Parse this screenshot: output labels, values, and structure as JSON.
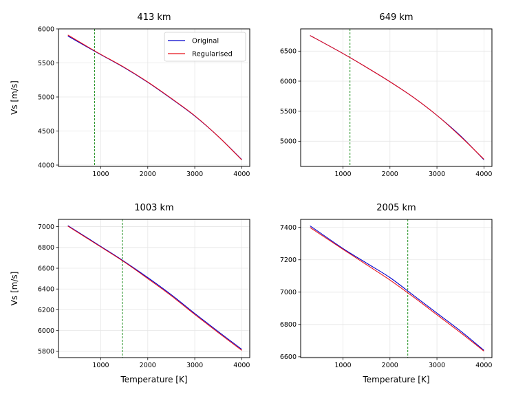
{
  "chart_data": [
    {
      "type": "line",
      "title": "413 km",
      "xlabel": "",
      "ylabel": "Vs [m/s]",
      "xlim": [
        100,
        4170
      ],
      "ylim": [
        3980,
        6000
      ],
      "xticks": [
        1000,
        2000,
        3000,
        4000
      ],
      "yticks": [
        4000,
        4500,
        5000,
        5500,
        6000
      ],
      "xtick_labels": [
        "1000",
        "2000",
        "3000",
        "4000"
      ],
      "ytick_labels": [
        "4000",
        "4500",
        "5000",
        "5500",
        "6000"
      ],
      "vline": 870,
      "grid": true,
      "legend": {
        "position": "top-right",
        "entries": [
          "Original",
          "Regularised"
        ]
      },
      "series": [
        {
          "name": "Original",
          "color": "#0000cc",
          "x": [
            300,
            900,
            1500,
            2000,
            2500,
            3000,
            3500,
            4000
          ],
          "y": [
            5895,
            5660,
            5430,
            5215,
            4975,
            4720,
            4420,
            4080
          ]
        },
        {
          "name": "Regularised",
          "color": "#e8101a",
          "x": [
            300,
            900,
            1500,
            2000,
            2500,
            3000,
            3500,
            4000
          ],
          "y": [
            5910,
            5665,
            5435,
            5220,
            4980,
            4725,
            4420,
            4075
          ]
        }
      ]
    },
    {
      "type": "line",
      "title": "649 km",
      "xlabel": "",
      "ylabel": "",
      "xlim": [
        100,
        4170
      ],
      "ylim": [
        4580,
        6870
      ],
      "xticks": [
        1000,
        2000,
        3000,
        4000
      ],
      "yticks": [
        5000,
        5500,
        6000,
        6500
      ],
      "xtick_labels": [
        "1000",
        "2000",
        "3000",
        "4000"
      ],
      "ytick_labels": [
        "5000",
        "5500",
        "6000",
        "6500"
      ],
      "vline": 1150,
      "grid": true,
      "series": [
        {
          "name": "Original",
          "color": "#0000cc",
          "x": [
            300,
            1000,
            1500,
            2000,
            2500,
            3000,
            3500,
            4000
          ],
          "y": [
            6760,
            6460,
            6230,
            5990,
            5730,
            5430,
            5090,
            4690
          ]
        },
        {
          "name": "Regularised",
          "color": "#e8101a",
          "x": [
            300,
            1000,
            1500,
            2000,
            2500,
            3000,
            3500,
            4000
          ],
          "y": [
            6760,
            6460,
            6230,
            5990,
            5730,
            5430,
            5080,
            4700
          ]
        }
      ]
    },
    {
      "type": "line",
      "title": "1003 km",
      "xlabel": "Temperature [K]",
      "ylabel": "Vs [m/s]",
      "xlim": [
        100,
        4170
      ],
      "ylim": [
        5740,
        7070
      ],
      "xticks": [
        1000,
        2000,
        3000,
        4000
      ],
      "yticks": [
        5800,
        6000,
        6200,
        6400,
        6600,
        6800,
        7000
      ],
      "xtick_labels": [
        "1000",
        "2000",
        "3000",
        "4000"
      ],
      "ytick_labels": [
        "5800",
        "6000",
        "6200",
        "6400",
        "6600",
        "6800",
        "7000"
      ],
      "vline": 1460,
      "grid": true,
      "series": [
        {
          "name": "Original",
          "color": "#0000cc",
          "x": [
            300,
            1000,
            1500,
            2000,
            2500,
            3000,
            3500,
            4000
          ],
          "y": [
            7010,
            6810,
            6665,
            6510,
            6345,
            6165,
            5990,
            5820
          ]
        },
        {
          "name": "Regularised",
          "color": "#e8101a",
          "x": [
            300,
            1000,
            1500,
            2000,
            2500,
            3000,
            3500,
            4000
          ],
          "y": [
            7005,
            6805,
            6660,
            6500,
            6335,
            6155,
            5980,
            5810
          ]
        }
      ]
    },
    {
      "type": "line",
      "title": "2005 km",
      "xlabel": "Temperature [K]",
      "ylabel": "",
      "xlim": [
        100,
        4170
      ],
      "ylim": [
        6595,
        7450
      ],
      "xticks": [
        1000,
        2000,
        3000,
        4000
      ],
      "yticks": [
        6600,
        6800,
        7000,
        7200,
        7400
      ],
      "xtick_labels": [
        "1000",
        "2000",
        "3000",
        "4000"
      ],
      "ytick_labels": [
        "6600",
        "6800",
        "7000",
        "7200",
        "7400"
      ],
      "vline": 2380,
      "grid": true,
      "series": [
        {
          "name": "Original",
          "color": "#0000cc",
          "x": [
            300,
            1000,
            1500,
            2000,
            2500,
            3000,
            3500,
            4000
          ],
          "y": [
            7410,
            7270,
            7180,
            7090,
            6980,
            6870,
            6760,
            6640
          ]
        },
        {
          "name": "Regularised",
          "color": "#e8101a",
          "x": [
            300,
            1000,
            1500,
            2000,
            2500,
            3000,
            3500,
            4000
          ],
          "y": [
            7400,
            7265,
            7170,
            7075,
            6970,
            6860,
            6750,
            6635
          ]
        }
      ]
    }
  ],
  "colors": {
    "vline": "#008000",
    "grid": "#e6e6e6",
    "axis": "#000000"
  }
}
